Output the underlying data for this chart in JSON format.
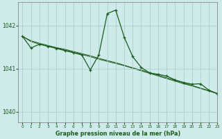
{
  "title": "Graphe pression niveau de la mer (hPa)",
  "background_color": "#ceeaea",
  "grid_color": "#aacece",
  "line_color": "#1a5c1a",
  "marker_color": "#1a5c1a",
  "xlim": [
    -0.5,
    23
  ],
  "ylim": [
    1039.75,
    1042.55
  ],
  "yticks": [
    1040,
    1041,
    1042
  ],
  "xticks": [
    0,
    1,
    2,
    3,
    4,
    5,
    6,
    7,
    8,
    9,
    10,
    11,
    12,
    13,
    14,
    15,
    16,
    17,
    18,
    19,
    20,
    21,
    22,
    23
  ],
  "series_main": {
    "x": [
      0,
      1,
      2,
      3,
      4,
      5,
      6,
      7,
      8,
      9,
      10,
      11,
      12,
      13,
      14,
      15,
      16,
      17,
      18,
      19,
      20,
      21,
      22,
      23
    ],
    "y": [
      1041.75,
      1041.48,
      1041.57,
      1041.52,
      1041.47,
      1041.42,
      1041.37,
      1041.32,
      1040.97,
      1041.32,
      1042.28,
      1042.36,
      1041.73,
      1041.28,
      1041.03,
      1040.9,
      1040.87,
      1040.83,
      1040.74,
      1040.68,
      1040.64,
      1040.65,
      1040.5,
      1040.42
    ]
  },
  "series_trend1": {
    "x": [
      0,
      1,
      2,
      3,
      4,
      5,
      6,
      7,
      8,
      9,
      10,
      11,
      12,
      13,
      14,
      15,
      16,
      17,
      18,
      19,
      20,
      21,
      22,
      23
    ],
    "y": [
      1041.75,
      1041.63,
      1041.57,
      1041.52,
      1041.48,
      1041.43,
      1041.38,
      1041.33,
      1041.28,
      1041.22,
      1041.17,
      1041.12,
      1041.07,
      1041.01,
      1040.95,
      1040.89,
      1040.83,
      1040.77,
      1040.71,
      1040.65,
      1040.6,
      1040.54,
      1040.48,
      1040.42
    ]
  },
  "series_trend2": {
    "x": [
      0,
      1,
      2,
      3,
      4,
      5,
      6,
      7,
      8,
      9,
      10,
      11,
      12,
      13,
      14,
      15,
      16,
      17,
      18,
      19,
      20,
      21,
      22,
      23
    ],
    "y": [
      1041.75,
      1041.65,
      1041.59,
      1041.54,
      1041.49,
      1041.45,
      1041.4,
      1041.35,
      1041.3,
      1041.24,
      1041.19,
      1041.14,
      1041.08,
      1041.02,
      1040.97,
      1040.91,
      1040.85,
      1040.79,
      1040.73,
      1040.67,
      1040.61,
      1040.55,
      1040.49,
      1040.42
    ]
  }
}
